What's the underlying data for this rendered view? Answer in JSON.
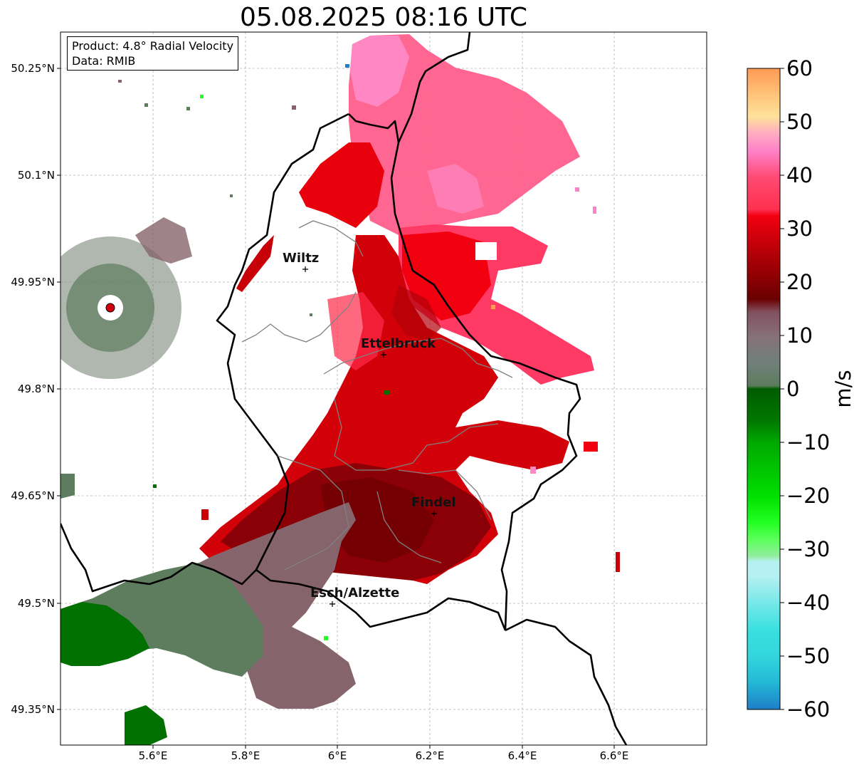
{
  "title": "05.08.2025 08:16 UTC",
  "info": {
    "product": "Product: 4.8° Radial Velocity",
    "data": "Data: RMIB"
  },
  "map": {
    "lon_range": [
      5.4,
      6.8
    ],
    "lat_range": [
      49.3,
      50.3
    ],
    "lon_ticks": [
      "5.6°E",
      "5.8°E",
      "6°E",
      "6.2°E",
      "6.4°E",
      "6.6°E"
    ],
    "lat_ticks": [
      "50.25°N",
      "50.1°N",
      "49.95°N",
      "49.8°N",
      "49.65°N",
      "49.5°N",
      "49.35°N"
    ],
    "gridlines": true,
    "radar_site": {
      "lon": 5.505,
      "lat": 49.915
    },
    "places": [
      {
        "name": "Wiltz",
        "lon": 5.93,
        "lat": 49.967
      },
      {
        "name": "Ettelbruck",
        "lon": 6.1,
        "lat": 49.849
      },
      {
        "name": "Findel",
        "lon": 6.21,
        "lat": 49.626
      },
      {
        "name": "Esch/Alzette",
        "lon": 5.99,
        "lat": 49.499
      }
    ]
  },
  "colorbar": {
    "label": "m/s",
    "ticks": [
      "60",
      "50",
      "40",
      "30",
      "20",
      "10",
      "0",
      "−10",
      "−20",
      "−30",
      "−40",
      "−50",
      "−60"
    ],
    "range": [
      -60,
      60
    ],
    "colors": {
      "p60": "#ff9a55",
      "p50": "#ffc47a",
      "p45": "#ffe29a",
      "p40": "#ffaec0",
      "p35": "#ff80c8",
      "p30": "#ff4a72",
      "p25": "#f20010",
      "p15": "#a80006",
      "p10": "#6a0000",
      "p8": "#825060",
      "p0": "#86727a",
      "m5": "#5c7c5c",
      "m10": "#005c00",
      "m20": "#00b400",
      "m30": "#22ff22",
      "m35": "#90ee9a",
      "m40": "#b6f0f2",
      "m50": "#3ae0e0",
      "m55": "#22b8d6",
      "m60": "#1e7ec8"
    }
  }
}
